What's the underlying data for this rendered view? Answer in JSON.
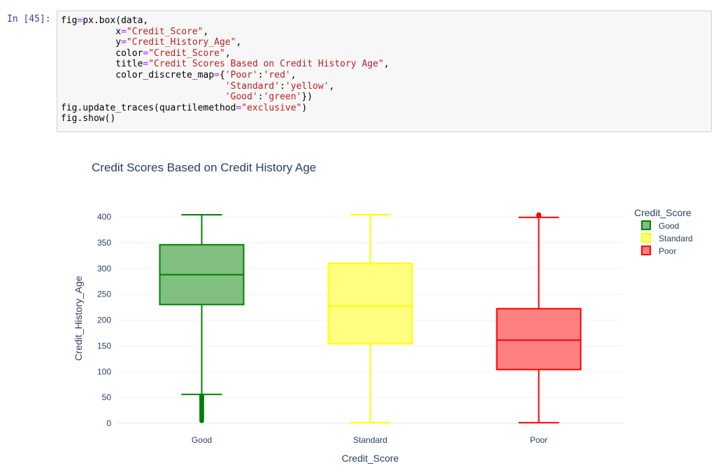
{
  "cell": {
    "prompt": "In [45]:",
    "code_lines": [
      [
        {
          "t": "fig"
        },
        {
          "t": "=",
          "c": "o"
        },
        {
          "t": "px.box(data,"
        }
      ],
      [
        {
          "t": "          x"
        },
        {
          "t": "=",
          "c": "o"
        },
        {
          "t": "\"Credit_Score\"",
          "c": "s"
        },
        {
          "t": ","
        }
      ],
      [
        {
          "t": "          y"
        },
        {
          "t": "=",
          "c": "o"
        },
        {
          "t": "\"Credit_History_Age\"",
          "c": "s"
        },
        {
          "t": ","
        }
      ],
      [
        {
          "t": "          color"
        },
        {
          "t": "=",
          "c": "o"
        },
        {
          "t": "\"Credit_Score\"",
          "c": "s"
        },
        {
          "t": ","
        }
      ],
      [
        {
          "t": "          title"
        },
        {
          "t": "=",
          "c": "o"
        },
        {
          "t": "\"Credit Scores Based on Credit History Age\"",
          "c": "s"
        },
        {
          "t": ","
        }
      ],
      [
        {
          "t": "          color_discrete_map"
        },
        {
          "t": "=",
          "c": "o"
        },
        {
          "t": "{"
        },
        {
          "t": "'Poor'",
          "c": "s"
        },
        {
          "t": ":"
        },
        {
          "t": "'red'",
          "c": "s"
        },
        {
          "t": ","
        }
      ],
      [
        {
          "t": "                              "
        },
        {
          "t": "'Standard'",
          "c": "s"
        },
        {
          "t": ":"
        },
        {
          "t": "'yellow'",
          "c": "s"
        },
        {
          "t": ","
        }
      ],
      [
        {
          "t": "                              "
        },
        {
          "t": "'Good'",
          "c": "s"
        },
        {
          "t": ":"
        },
        {
          "t": "'green'",
          "c": "s"
        },
        {
          "t": "})"
        }
      ],
      [
        {
          "t": "fig.update_traces(quartilemethod"
        },
        {
          "t": "=",
          "c": "o"
        },
        {
          "t": "\"exclusive\"",
          "c": "s"
        },
        {
          "t": ")"
        }
      ],
      [
        {
          "t": "fig.show()"
        }
      ]
    ]
  },
  "chart_data": {
    "type": "box",
    "title": "Credit Scores Based on Credit History Age",
    "xlabel": "Credit_Score",
    "ylabel": "Credit_History_Age",
    "categories": [
      "Good",
      "Standard",
      "Poor"
    ],
    "ylim": [
      0,
      404
    ],
    "yticks": [
      0,
      50,
      100,
      150,
      200,
      250,
      300,
      350,
      400
    ],
    "grid": true,
    "legend": {
      "title": "Credit_Score",
      "placement": "right"
    },
    "series": [
      {
        "name": "Good",
        "color": "#008000",
        "fill": "#80bf80",
        "min": 56,
        "q1": 230,
        "median": 288,
        "q3": 346,
        "max": 404,
        "outliers": [
          5,
          10,
          14,
          18,
          22,
          26,
          30,
          34,
          38,
          42,
          46,
          50,
          53
        ]
      },
      {
        "name": "Standard",
        "color": "#ffff00",
        "fill": "#ffff80",
        "min": 1,
        "q1": 154,
        "median": 227,
        "q3": 310,
        "max": 404,
        "outliers": []
      },
      {
        "name": "Poor",
        "color": "#ff0000",
        "fill": "#ff8080",
        "min": 1,
        "q1": 104,
        "median": 161,
        "q3": 222,
        "max": 399,
        "outliers": [
          402,
          404
        ]
      }
    ]
  }
}
